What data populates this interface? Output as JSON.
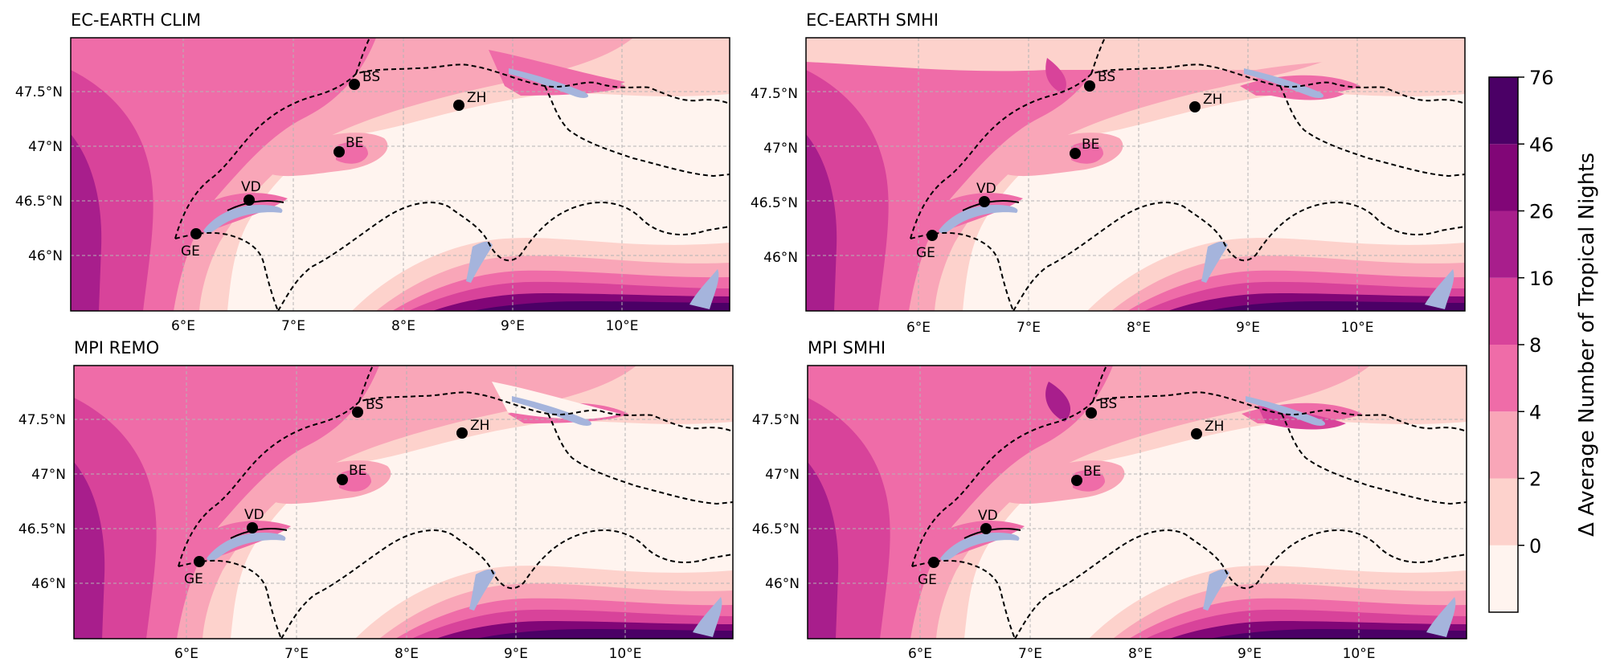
{
  "panels": [
    {
      "title": "EC-EARTH CLIM",
      "lat_ticks": [
        "47.5°N",
        "47°N",
        "46.5°N",
        "46°N"
      ],
      "lon_ticks": [
        "6°E",
        "7°E",
        "8°E",
        "9°E",
        "10°E"
      ],
      "cities": [
        "BS",
        "ZH",
        "BE",
        "VD",
        "GE"
      ]
    },
    {
      "title": "EC-EARTH SMHI",
      "lat_ticks": [
        "47.5°N",
        "47°N",
        "46.5°N",
        "46°N"
      ],
      "lon_ticks": [
        "6°E",
        "7°E",
        "8°E",
        "9°E",
        "10°E"
      ],
      "cities": [
        "BS",
        "ZH",
        "BE",
        "VD",
        "GE"
      ]
    },
    {
      "title": "MPI REMO",
      "lat_ticks": [
        "47.5°N",
        "47°N",
        "46.5°N",
        "46°N"
      ],
      "lon_ticks": [
        "6°E",
        "7°E",
        "8°E",
        "9°E",
        "10°E"
      ],
      "cities": [
        "BS",
        "ZH",
        "BE",
        "VD",
        "GE"
      ]
    },
    {
      "title": "MPI SMHI",
      "lat_ticks": [
        "47.5°N",
        "47°N",
        "46.5°N",
        "46°N"
      ],
      "lon_ticks": [
        "6°E",
        "7°E",
        "8°E",
        "9°E",
        "10°E"
      ],
      "cities": [
        "BS",
        "ZH",
        "BE",
        "VD",
        "GE"
      ]
    }
  ],
  "colorbar": {
    "label": "Δ Average Number of Tropical Nights",
    "ticks": [
      "76",
      "46",
      "26",
      "16",
      "8",
      "4",
      "2",
      "0"
    ],
    "colors": [
      "#fff4ef",
      "#fdd2cc",
      "#f9a6b8",
      "#ef6ca8",
      "#d8439a",
      "#a81e8c",
      "#810677",
      "#4b0066"
    ]
  },
  "colors": {
    "lake": "#a5b4dc",
    "background_low": "#fff4ef",
    "grid": "#b4b4b4"
  }
}
